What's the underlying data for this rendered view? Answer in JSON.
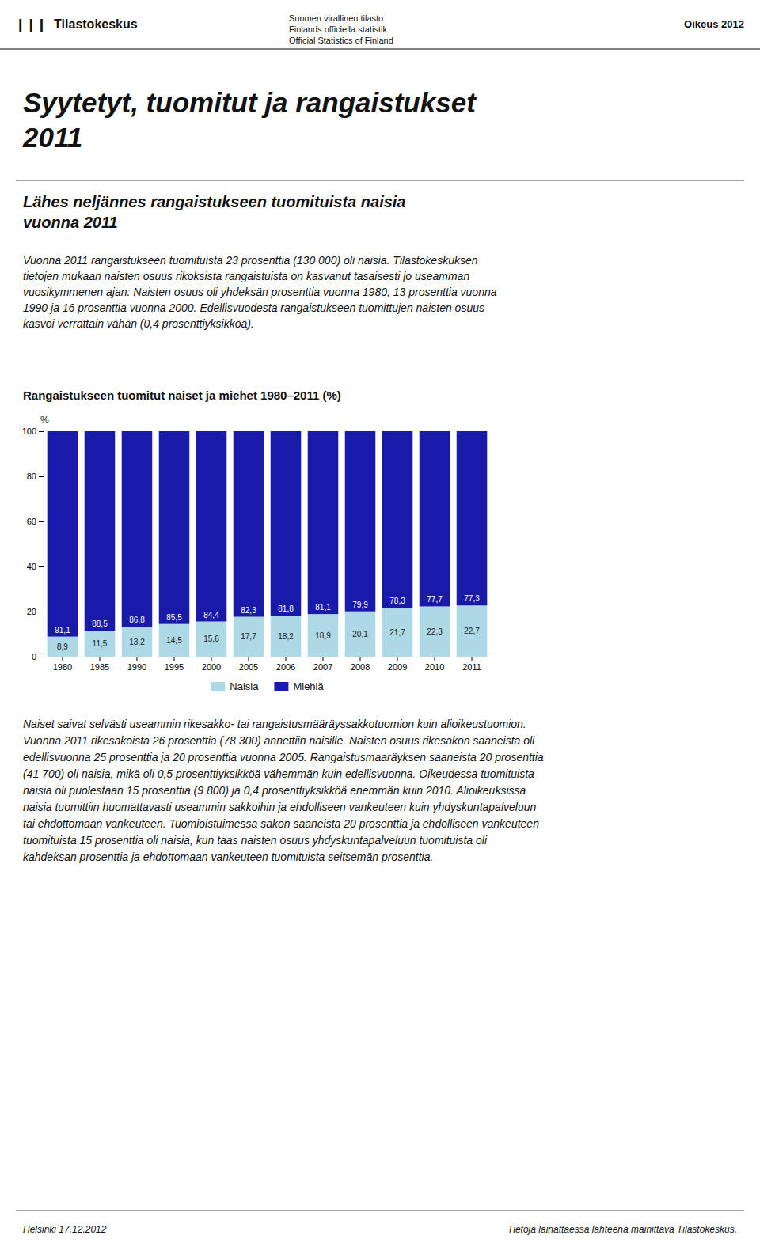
{
  "page": {
    "logo": "❙❙❙  Tilastokeskus",
    "header_center": [
      "Suomen virallinen tilasto",
      "Finlands officiella statistik",
      "Official Statistics of Finland"
    ],
    "header_right": "Oikeus 2012",
    "main_title": [
      "Syytetyt, tuomitut ja rangaistukset",
      "2011"
    ],
    "subtitle": [
      "Lähes neljännes rangaistukseen tuomituista naisia",
      "vuonna 2011"
    ],
    "body_text": [
      "Vuonna 2011 rangaistukseen tuomituista 23 prosenttia (130 000) oli naisia. Tilastokeskuksen",
      "tietojen mukaan naisten osuus rikoksista rangaistuista on kasvanut tasaisesti jo useamman",
      "vuosikymmenen ajan: Naisten osuus oli yhdeksän prosenttia vuonna 1980, 13 prosenttia vuonna",
      "1990 ja 16 prosenttia vuonna 2000. Edellisvuodesta rangaistukseen tuomittujen naisten osuus",
      "kasvoi verrattain vähän (0,4 prosenttiyksikköä)."
    ],
    "body_text2": [
      "Naiset saivat selvästi useammin rikesakko- tai rangaistusmääräyssakkotuomion kuin alioikeustuomion.",
      "Vuonna 2011 rikesakoista 26 prosenttia (78 300) annettiin naisille. Naisten osuus rikesakon saaneista oli",
      "edellisvuonna 25 prosenttia ja 20 prosenttia vuonna 2005. Rangaistusmaaräyksen saaneista 20 prosenttia",
      "(41 700) oli naisia, mikä oli 0,5 prosenttiyksikköä vähemmän kuin edellisvuonna. Oikeudessa tuomituista",
      "naisia oli puolestaan 15 prosenttia (9 800) ja 0,4 prosenttiyksikköä enemmän kuin 2010. Alioikeuksissa",
      "naisia tuomittiin huomattavasti useammin sakkoihin ja ehdolliseen vankeuteen kuin yhdyskuntapalveluun",
      "tai ehdottomaan vankeuteen. Tuomioistuimessa sakon saaneista 20 prosenttia ja ehdolliseen vankeuteen",
      "tuomituista 15 prosenttia oli naisia, kun taas naisten osuus yhdyskuntapalveluun tuomituista oli",
      "kahdeksan prosenttia ja ehdottomaan vankeuteen tuomituista seitsemän prosenttia."
    ],
    "footer_left": "Helsinki 17.12.2012",
    "footer_right": "Tietoja lainattaessa lähteenä mainittava Tilastokeskus."
  },
  "chart_data": {
    "type": "bar",
    "title": "Rangaistukseen tuomitut naiset ja miehet 1980–2011 (%)",
    "ylabel": "%",
    "categories": [
      "1980",
      "1985",
      "1990",
      "1995",
      "2000",
      "2005",
      "2006",
      "2007",
      "2008",
      "2009",
      "2010",
      "2011"
    ],
    "series": [
      {
        "name": "Naisia",
        "color": "#add8e6",
        "values": [
          8.9,
          11.5,
          13.2,
          14.5,
          15.6,
          17.7,
          18.2,
          18.9,
          20.1,
          21.7,
          22.3,
          22.7
        ],
        "value_labels": [
          "8,9",
          "11,5",
          "13,2",
          "14,5",
          "15,6",
          "17,7",
          "18,2",
          "18,9",
          "20,1",
          "21,7",
          "22,3",
          "22,7"
        ]
      },
      {
        "name": "Miehiä",
        "color": "#1a1aaa",
        "values": [
          91.1,
          88.5,
          86.8,
          85.5,
          84.4,
          82.3,
          81.8,
          81.1,
          79.9,
          78.3,
          77.7,
          77.3
        ],
        "value_labels": [
          "91,1",
          "88,5",
          "86,8",
          "85,5",
          "84,4",
          "82,3",
          "81,8",
          "81,1",
          "79,9",
          "78,3",
          "77,7",
          "77,3"
        ]
      }
    ],
    "stacked": true,
    "data_labels": true,
    "ylim": [
      0,
      100
    ],
    "yticks": [
      0,
      20,
      40,
      60,
      80,
      100
    ],
    "grid": false,
    "legend": "bottom"
  }
}
